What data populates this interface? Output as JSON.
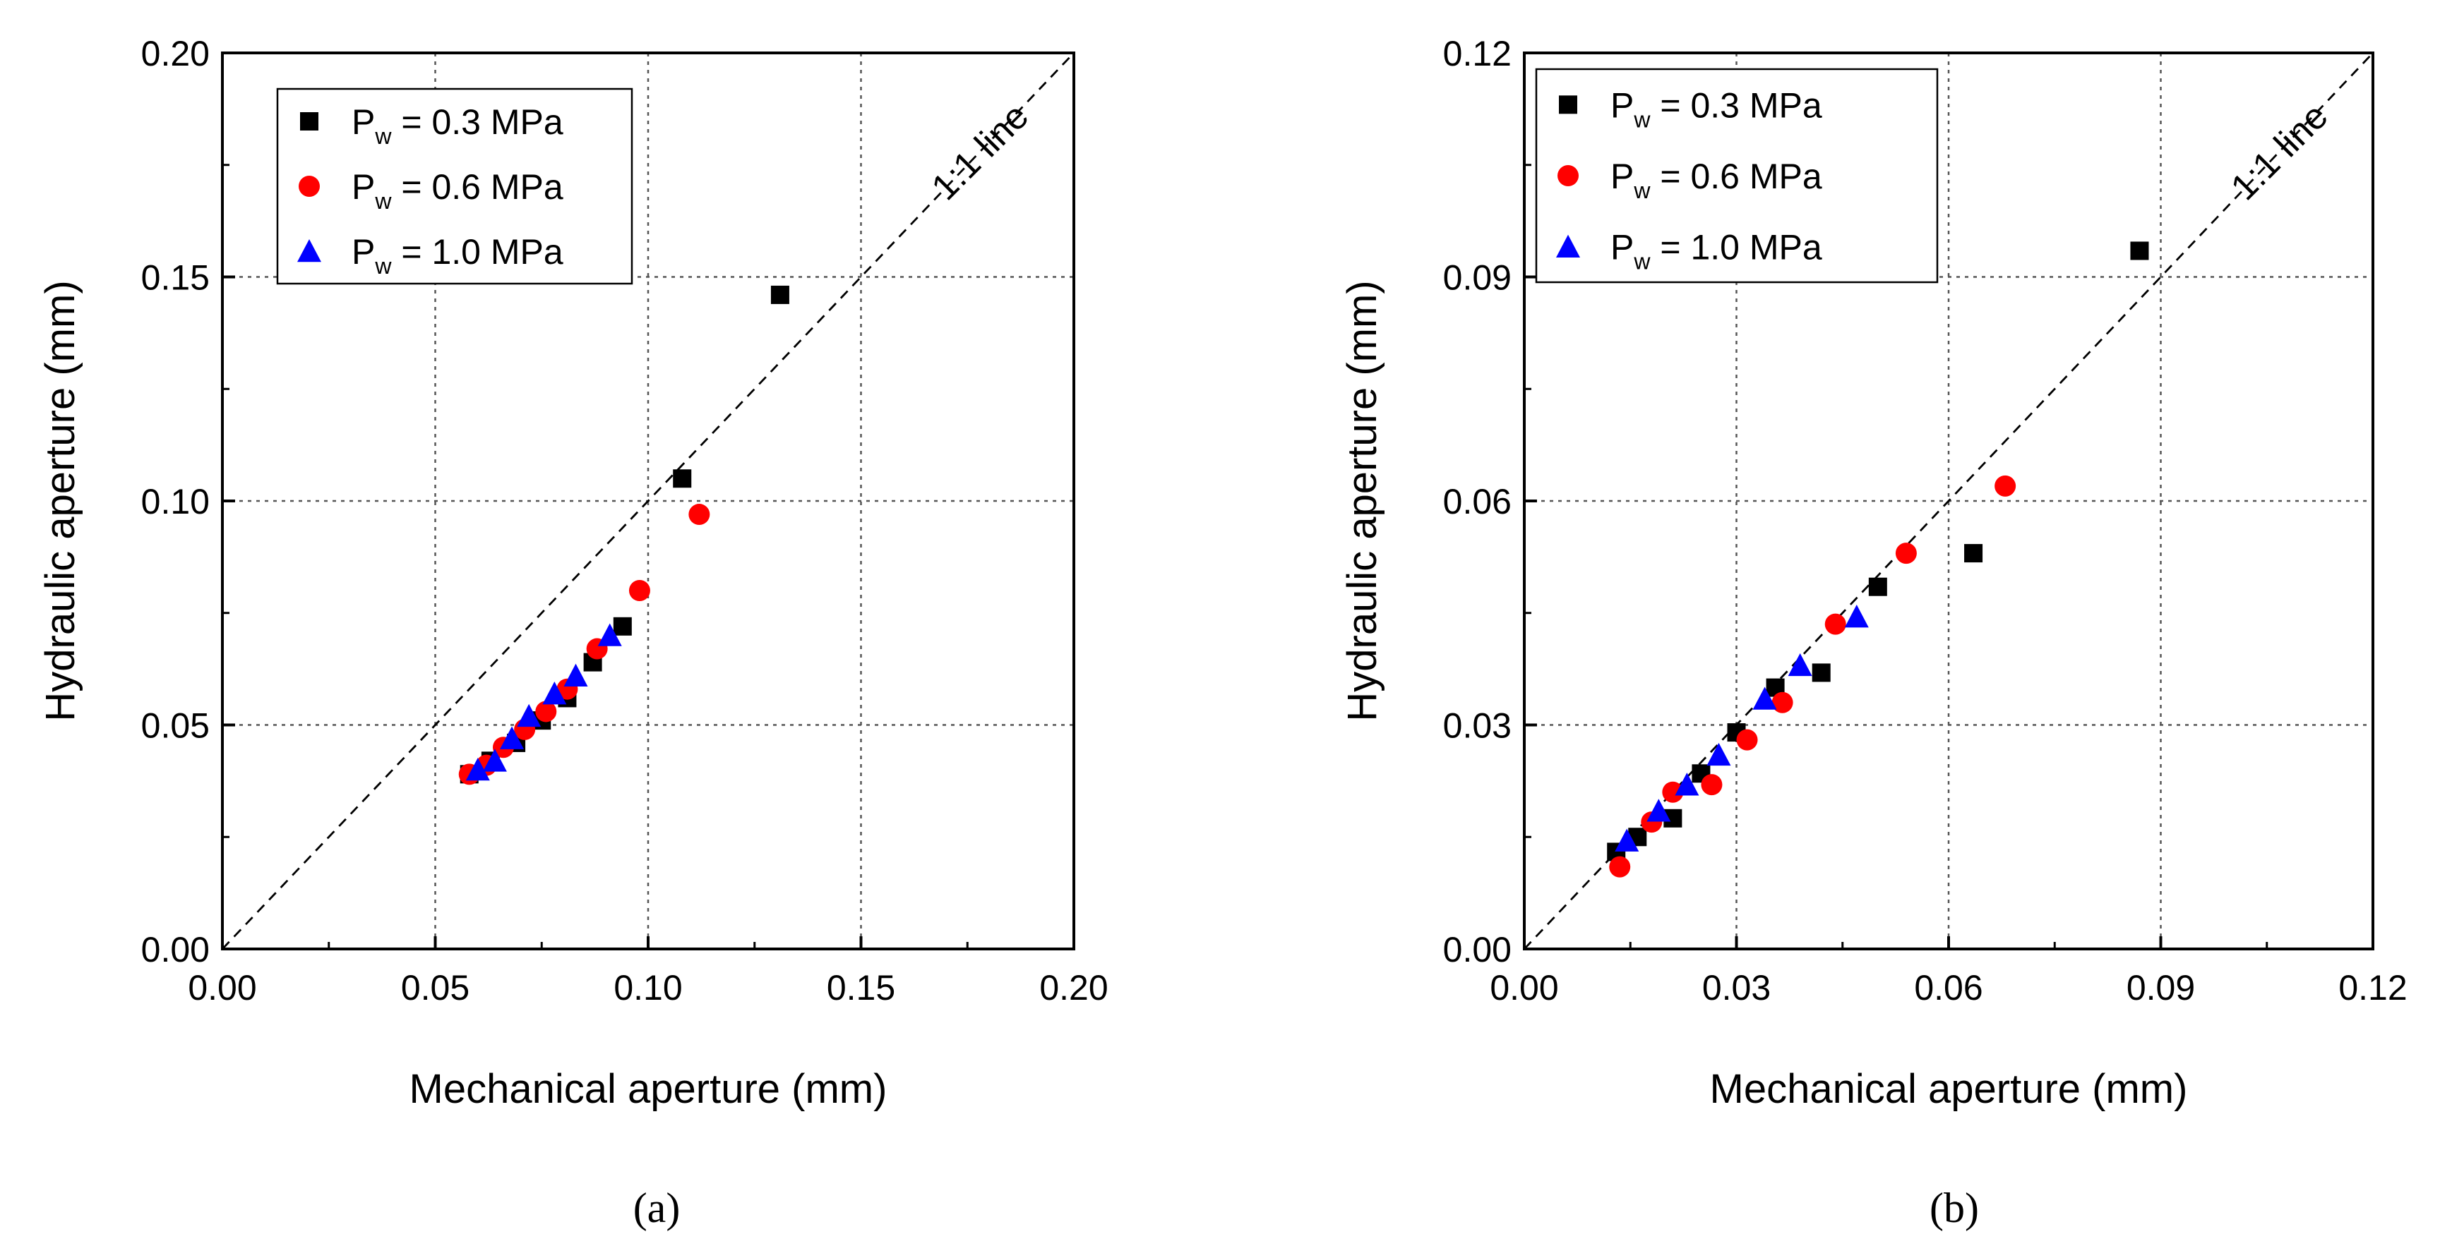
{
  "chart_data": [
    {
      "type": "scatter",
      "panel_label": "(a)",
      "xlabel": "Mechanical aperture (mm)",
      "ylabel": "Hydraulic aperture (mm)",
      "xlim": [
        0.0,
        0.2
      ],
      "ylim": [
        0.0,
        0.2
      ],
      "xticks": [
        "0.00",
        "0.05",
        "0.10",
        "0.15",
        "0.20"
      ],
      "yticks": [
        "0.00",
        "0.05",
        "0.10",
        "0.15",
        "0.20"
      ],
      "grid": true,
      "legend_position": "top-left",
      "reference_line": {
        "label": "1:1 line",
        "style": "dashed"
      },
      "series": [
        {
          "name": "P_w = 0.3 MPa",
          "legend_prefix": "P",
          "legend_sub": "w",
          "legend_value": " = 0.3 MPa",
          "marker": "square",
          "color": "#000000",
          "x": [
            0.058,
            0.063,
            0.069,
            0.075,
            0.081,
            0.087,
            0.094,
            0.108,
            0.131
          ],
          "y": [
            0.039,
            0.042,
            0.046,
            0.051,
            0.056,
            0.064,
            0.072,
            0.105,
            0.146
          ]
        },
        {
          "name": "P_w = 0.6 MPa",
          "legend_prefix": "P",
          "legend_sub": "w",
          "legend_value": " = 0.6 MPa",
          "marker": "circle",
          "color": "#ff0000",
          "x": [
            0.058,
            0.062,
            0.066,
            0.071,
            0.076,
            0.081,
            0.088,
            0.098,
            0.112
          ],
          "y": [
            0.039,
            0.041,
            0.045,
            0.049,
            0.053,
            0.058,
            0.067,
            0.08,
            0.097
          ]
        },
        {
          "name": "P_w = 1.0 MPa",
          "legend_prefix": "P",
          "legend_sub": "w",
          "legend_value": " = 1.0 MPa",
          "marker": "triangle",
          "color": "#0000ff",
          "x": [
            0.06,
            0.064,
            0.068,
            0.072,
            0.078,
            0.083,
            0.091
          ],
          "y": [
            0.04,
            0.042,
            0.047,
            0.052,
            0.057,
            0.061,
            0.07
          ]
        }
      ]
    },
    {
      "type": "scatter",
      "panel_label": "(b)",
      "xlabel": "Mechanical aperture (mm)",
      "ylabel": "Hydraulic aperture (mm)",
      "xlim": [
        0.0,
        0.12
      ],
      "ylim": [
        0.0,
        0.12
      ],
      "xticks": [
        "0.00",
        "0.03",
        "0.06",
        "0.09",
        "0.12"
      ],
      "yticks": [
        "0.00",
        "0.03",
        "0.06",
        "0.09",
        "0.12"
      ],
      "grid": true,
      "legend_position": "top-left",
      "reference_line": {
        "label": "1:1 line",
        "style": "dashed"
      },
      "series": [
        {
          "name": "P_w = 0.3 MPa",
          "legend_prefix": "P",
          "legend_sub": "w",
          "legend_value": " = 0.3 MPa",
          "marker": "square",
          "color": "#000000",
          "x": [
            0.013,
            0.016,
            0.021,
            0.025,
            0.03,
            0.0355,
            0.042,
            0.05,
            0.0635,
            0.087
          ],
          "y": [
            0.013,
            0.015,
            0.0175,
            0.0235,
            0.029,
            0.035,
            0.037,
            0.0485,
            0.053,
            0.0935
          ]
        },
        {
          "name": "P_w = 0.6 MPa",
          "legend_prefix": "P",
          "legend_sub": "w",
          "legend_value": " = 0.6 MPa",
          "marker": "circle",
          "color": "#ff0000",
          "x": [
            0.0135,
            0.018,
            0.021,
            0.0265,
            0.0315,
            0.0365,
            0.044,
            0.054,
            0.068
          ],
          "y": [
            0.011,
            0.017,
            0.021,
            0.022,
            0.028,
            0.033,
            0.0435,
            0.053,
            0.062
          ]
        },
        {
          "name": "P_w = 1.0 MPa",
          "legend_prefix": "P",
          "legend_sub": "w",
          "legend_value": " = 1.0 MPa",
          "marker": "triangle",
          "color": "#0000ff",
          "x": [
            0.0145,
            0.019,
            0.023,
            0.0275,
            0.034,
            0.039,
            0.047
          ],
          "y": [
            0.0145,
            0.0185,
            0.022,
            0.026,
            0.0335,
            0.038,
            0.0445
          ]
        }
      ]
    }
  ]
}
